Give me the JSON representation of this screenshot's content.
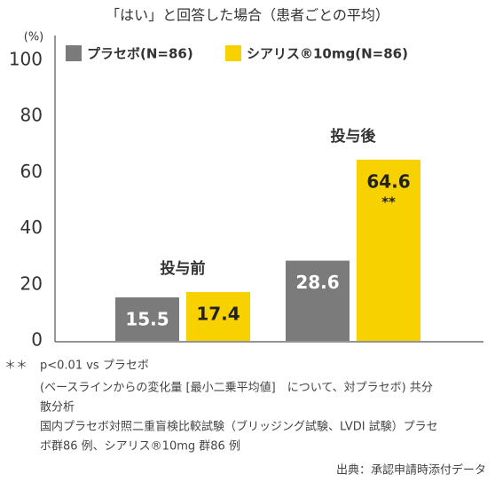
{
  "chart_data": {
    "type": "bar",
    "title": "「はい」と回答した場合（患者ごとの平均）",
    "y_unit": "(%)",
    "categories": [
      "投与前",
      "投与後"
    ],
    "series": [
      {
        "name": "プラセボ(N=86)",
        "color": "#7b7b7b",
        "label_color": "#ffffff",
        "values": [
          15.5,
          28.6
        ],
        "annotations": [
          null,
          null
        ]
      },
      {
        "name": "シアリス®10mg(N=86)",
        "color": "#f7d200",
        "label_color": "#222222",
        "values": [
          17.4,
          64.6
        ],
        "annotations": [
          null,
          "**"
        ]
      }
    ],
    "ylim": [
      0,
      100
    ],
    "yticks": [
      0,
      20,
      40,
      60,
      80,
      100
    ],
    "grid": false,
    "notes": {
      "symbol": "＊＊",
      "lines": [
        "p<0.01 vs プラセボ",
        "(ベースラインからの変化量 [最小二乗平均値]　について、対プラセボ) 共分",
        "散分析",
        "国内プラセボ対照二重盲検比較試験（ブリッジング試験、LVDI 試験）プラセ",
        "ボ群86 例、シアリス®10mg 群86 例"
      ]
    },
    "source": "出典：承認申請時添付データ"
  }
}
